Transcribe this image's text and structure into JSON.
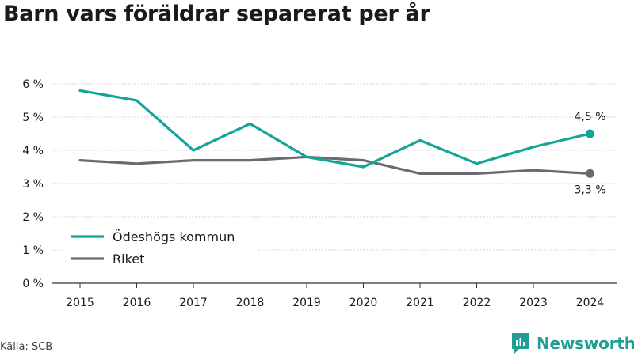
{
  "title": "Barn vars föräldrar separerat per år",
  "source": "Källa: SCB",
  "brand": "Newsworthy",
  "colors": {
    "series1": "#13a59a",
    "series2": "#6a6a72",
    "brand": "#1f9e96"
  },
  "chart_data": {
    "type": "line",
    "x": [
      "2015",
      "2016",
      "2017",
      "2018",
      "2019",
      "2020",
      "2021",
      "2022",
      "2023",
      "2024"
    ],
    "yticks": [
      "0 %",
      "1 %",
      "2 %",
      "3 %",
      "4 %",
      "5 %",
      "6 %"
    ],
    "ylim": [
      0,
      6
    ],
    "grid": true,
    "legend_position": "bottom-left",
    "series": [
      {
        "name": "Ödeshögs kommun",
        "values": [
          5.8,
          5.5,
          4.0,
          4.8,
          3.8,
          3.5,
          4.3,
          3.6,
          4.1,
          4.5
        ],
        "end_label": "4,5 %"
      },
      {
        "name": "Riket",
        "values": [
          3.7,
          3.6,
          3.7,
          3.7,
          3.8,
          3.7,
          3.3,
          3.3,
          3.4,
          3.3
        ],
        "end_label": "3,3 %"
      }
    ]
  }
}
